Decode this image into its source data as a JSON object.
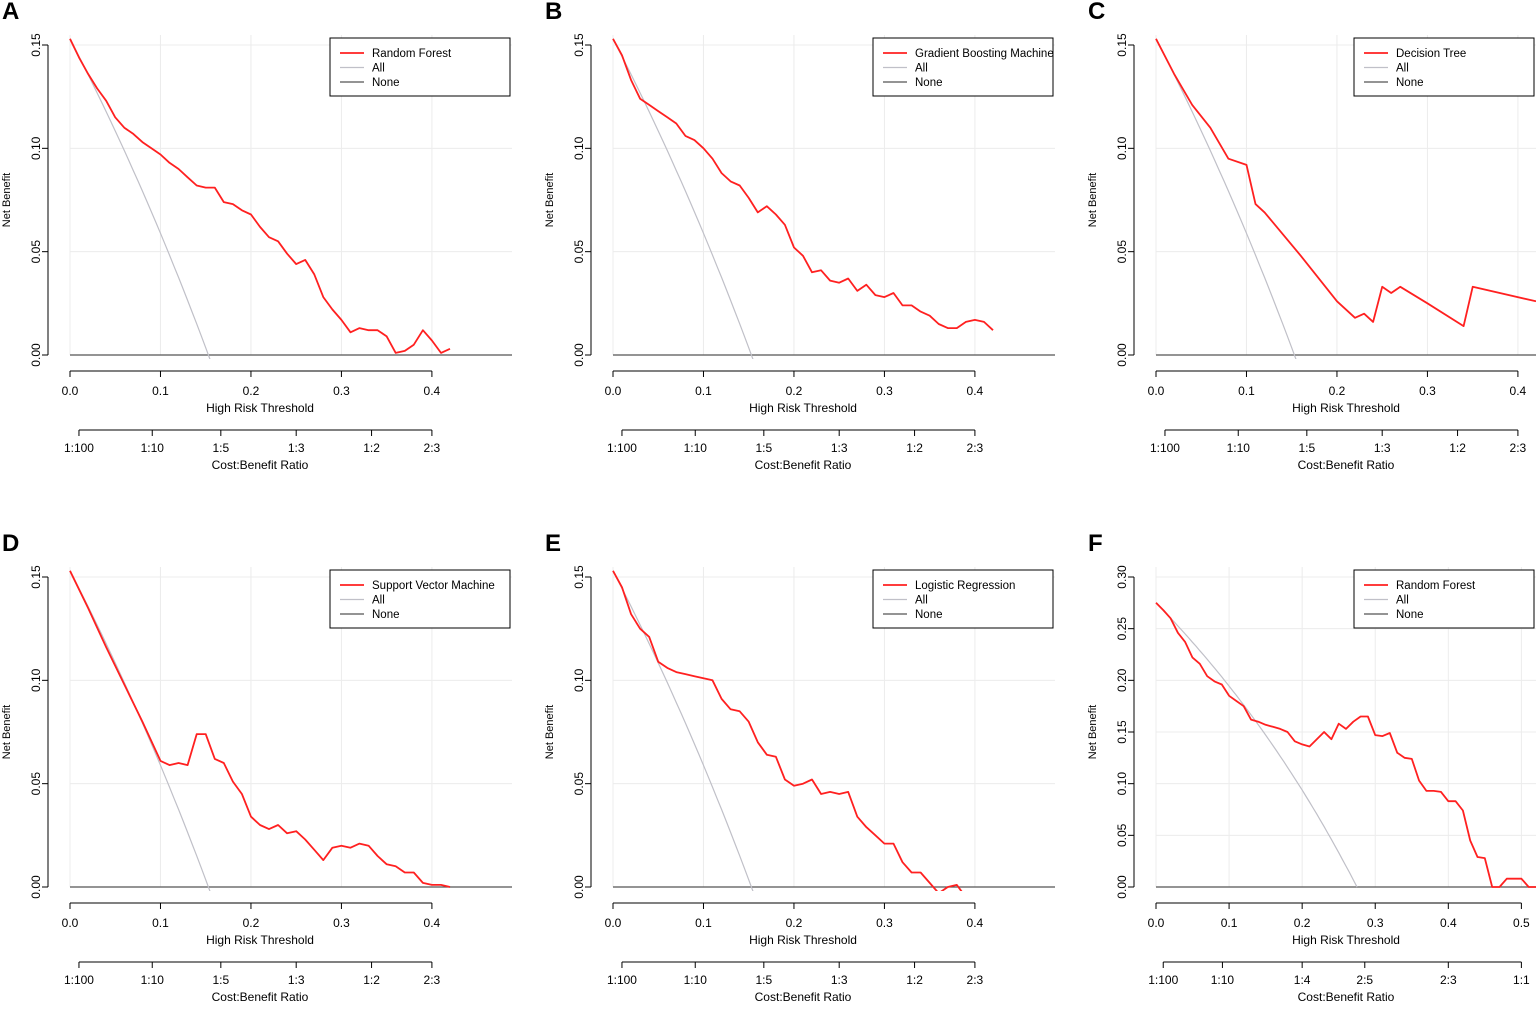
{
  "colors": {
    "model_line": "#ff2020",
    "all_line": "#c0c0c8",
    "none_line": "#555555",
    "grid": "#ececec",
    "axis": "#000000"
  },
  "chart_data": [
    {
      "panel": "A",
      "type": "line",
      "xlabel": "High Risk Threshold",
      "ylabel": "Net Benefit",
      "x2label": "Cost:Benefit Ratio",
      "xlim": [
        0,
        0.42
      ],
      "ylim": [
        0,
        0.15
      ],
      "xticks": [
        0.0,
        0.1,
        0.2,
        0.3,
        0.4
      ],
      "xtick_labels": [
        "0.0",
        "0.1",
        "0.2",
        "0.3",
        "0.4"
      ],
      "yticks": [
        0.0,
        0.05,
        0.1,
        0.15
      ],
      "ytick_labels": [
        "0.00",
        "0.05",
        "0.10",
        "0.15"
      ],
      "cbr_ticks": [
        0.0099,
        0.0909,
        0.1667,
        0.25,
        0.3333,
        0.4
      ],
      "cbr_labels": [
        "1:100",
        "1:10",
        "1:5",
        "1:3",
        "1:2",
        "2:3"
      ],
      "legend": {
        "position": "top-right",
        "entries": [
          "Random Forest",
          "All",
          "None"
        ]
      },
      "prevalence": 0.153,
      "series": [
        {
          "name": "Random Forest",
          "x": [
            0,
            0.01,
            0.02,
            0.03,
            0.04,
            0.05,
            0.06,
            0.07,
            0.08,
            0.09,
            0.1,
            0.11,
            0.12,
            0.13,
            0.14,
            0.15,
            0.16,
            0.17,
            0.18,
            0.19,
            0.2,
            0.21,
            0.22,
            0.23,
            0.24,
            0.25,
            0.26,
            0.27,
            0.28,
            0.29,
            0.3,
            0.31,
            0.32,
            0.33,
            0.34,
            0.35,
            0.36,
            0.37,
            0.38,
            0.39,
            0.4,
            0.41,
            0.42
          ],
          "y": [
            0.153,
            0.144,
            0.136,
            0.129,
            0.123,
            0.115,
            0.11,
            0.107,
            0.103,
            0.1,
            0.097,
            0.093,
            0.09,
            0.086,
            0.082,
            0.081,
            0.081,
            0.074,
            0.073,
            0.07,
            0.068,
            0.062,
            0.057,
            0.055,
            0.049,
            0.044,
            0.046,
            0.039,
            0.028,
            0.022,
            0.017,
            0.011,
            0.013,
            0.012,
            0.012,
            0.009,
            0.001,
            0.002,
            0.005,
            0.012,
            0.007,
            0.001,
            0.003
          ]
        }
      ]
    },
    {
      "panel": "B",
      "type": "line",
      "xlabel": "High Risk Threshold",
      "ylabel": "Net Benefit",
      "x2label": "Cost:Benefit Ratio",
      "xlim": [
        0,
        0.42
      ],
      "ylim": [
        0,
        0.15
      ],
      "xticks": [
        0.0,
        0.1,
        0.2,
        0.3,
        0.4
      ],
      "xtick_labels": [
        "0.0",
        "0.1",
        "0.2",
        "0.3",
        "0.4"
      ],
      "yticks": [
        0.0,
        0.05,
        0.1,
        0.15
      ],
      "ytick_labels": [
        "0.00",
        "0.05",
        "0.10",
        "0.15"
      ],
      "cbr_ticks": [
        0.0099,
        0.0909,
        0.1667,
        0.25,
        0.3333,
        0.4
      ],
      "cbr_labels": [
        "1:100",
        "1:10",
        "1:5",
        "1:3",
        "1:2",
        "2:3"
      ],
      "legend": {
        "position": "top-right",
        "entries": [
          "Gradient Boosting Machine",
          "All",
          "None"
        ]
      },
      "prevalence": 0.153,
      "series": [
        {
          "name": "Gradient Boosting Machine",
          "x": [
            0,
            0.01,
            0.02,
            0.03,
            0.04,
            0.05,
            0.06,
            0.07,
            0.08,
            0.09,
            0.1,
            0.11,
            0.12,
            0.13,
            0.14,
            0.15,
            0.16,
            0.17,
            0.18,
            0.19,
            0.2,
            0.21,
            0.22,
            0.23,
            0.24,
            0.25,
            0.26,
            0.27,
            0.28,
            0.29,
            0.3,
            0.31,
            0.32,
            0.33,
            0.34,
            0.35,
            0.36,
            0.37,
            0.38,
            0.39,
            0.4,
            0.41,
            0.42
          ],
          "y": [
            0.153,
            0.145,
            0.133,
            0.124,
            0.121,
            0.118,
            0.115,
            0.112,
            0.106,
            0.104,
            0.1,
            0.095,
            0.088,
            0.084,
            0.082,
            0.076,
            0.069,
            0.072,
            0.068,
            0.063,
            0.052,
            0.048,
            0.04,
            0.041,
            0.036,
            0.035,
            0.037,
            0.031,
            0.034,
            0.029,
            0.028,
            0.03,
            0.024,
            0.024,
            0.021,
            0.019,
            0.015,
            0.013,
            0.013,
            0.016,
            0.017,
            0.016,
            0.012
          ]
        }
      ]
    },
    {
      "panel": "C",
      "type": "line",
      "xlabel": "High Risk Threshold",
      "ylabel": "Net Benefit",
      "x2label": "Cost:Benefit Ratio",
      "xlim": [
        0,
        0.42
      ],
      "ylim": [
        0,
        0.15
      ],
      "xticks": [
        0.0,
        0.1,
        0.2,
        0.3,
        0.4
      ],
      "xtick_labels": [
        "0.0",
        "0.1",
        "0.2",
        "0.3",
        "0.4"
      ],
      "yticks": [
        0.0,
        0.05,
        0.1,
        0.15
      ],
      "ytick_labels": [
        "0.00",
        "0.05",
        "0.10",
        "0.15"
      ],
      "cbr_ticks": [
        0.0099,
        0.0909,
        0.1667,
        0.25,
        0.3333,
        0.4
      ],
      "cbr_labels": [
        "1:100",
        "1:10",
        "1:5",
        "1:3",
        "1:2",
        "2:3"
      ],
      "legend": {
        "position": "top-right",
        "entries": [
          "Decision Tree",
          "All",
          "None"
        ]
      },
      "prevalence": 0.153,
      "series": [
        {
          "name": "Decision Tree",
          "x": [
            0,
            0.02,
            0.04,
            0.06,
            0.08,
            0.1,
            0.11,
            0.12,
            0.16,
            0.2,
            0.22,
            0.23,
            0.24,
            0.25,
            0.26,
            0.27,
            0.3,
            0.34,
            0.35,
            0.42
          ],
          "y": [
            0.153,
            0.136,
            0.121,
            0.11,
            0.095,
            0.092,
            0.073,
            0.069,
            0.048,
            0.026,
            0.018,
            0.02,
            0.016,
            0.033,
            0.03,
            0.033,
            0.025,
            0.014,
            0.033,
            0.026
          ]
        }
      ]
    },
    {
      "panel": "D",
      "type": "line",
      "xlabel": "High Risk Threshold",
      "ylabel": "Net Benefit",
      "x2label": "Cost:Benefit Ratio",
      "xlim": [
        0,
        0.42
      ],
      "ylim": [
        0,
        0.15
      ],
      "xticks": [
        0.0,
        0.1,
        0.2,
        0.3,
        0.4
      ],
      "xtick_labels": [
        "0.0",
        "0.1",
        "0.2",
        "0.3",
        "0.4"
      ],
      "yticks": [
        0.0,
        0.05,
        0.1,
        0.15
      ],
      "ytick_labels": [
        "0.00",
        "0.05",
        "0.10",
        "0.15"
      ],
      "cbr_ticks": [
        0.0099,
        0.0909,
        0.1667,
        0.25,
        0.3333,
        0.4
      ],
      "cbr_labels": [
        "1:100",
        "1:10",
        "1:5",
        "1:3",
        "1:2",
        "2:3"
      ],
      "legend": {
        "position": "top-right",
        "entries": [
          "Support Vector Machine",
          "All",
          "None"
        ]
      },
      "prevalence": 0.153,
      "series": [
        {
          "name": "Support Vector Machine",
          "x": [
            0,
            0.02,
            0.04,
            0.06,
            0.08,
            0.1,
            0.11,
            0.12,
            0.13,
            0.14,
            0.15,
            0.16,
            0.17,
            0.18,
            0.19,
            0.2,
            0.21,
            0.22,
            0.23,
            0.24,
            0.25,
            0.26,
            0.27,
            0.28,
            0.29,
            0.3,
            0.31,
            0.32,
            0.33,
            0.34,
            0.35,
            0.36,
            0.37,
            0.38,
            0.39,
            0.4,
            0.41,
            0.42
          ],
          "y": [
            0.153,
            0.135,
            0.116,
            0.098,
            0.08,
            0.061,
            0.059,
            0.06,
            0.059,
            0.074,
            0.074,
            0.062,
            0.06,
            0.051,
            0.045,
            0.034,
            0.03,
            0.028,
            0.03,
            0.026,
            0.027,
            0.023,
            0.018,
            0.013,
            0.019,
            0.02,
            0.019,
            0.021,
            0.02,
            0.015,
            0.011,
            0.01,
            0.007,
            0.007,
            0.002,
            0.001,
            0.001,
            0.0
          ]
        }
      ]
    },
    {
      "panel": "E",
      "type": "line",
      "xlabel": "High Risk Threshold",
      "ylabel": "Net Benefit",
      "x2label": "Cost:Benefit Ratio",
      "xlim": [
        0,
        0.42
      ],
      "ylim": [
        0,
        0.15
      ],
      "xticks": [
        0.0,
        0.1,
        0.2,
        0.3,
        0.4
      ],
      "xtick_labels": [
        "0.0",
        "0.1",
        "0.2",
        "0.3",
        "0.4"
      ],
      "yticks": [
        0.0,
        0.05,
        0.1,
        0.15
      ],
      "ytick_labels": [
        "0.00",
        "0.05",
        "0.10",
        "0.15"
      ],
      "cbr_ticks": [
        0.0099,
        0.0909,
        0.1667,
        0.25,
        0.3333,
        0.4
      ],
      "cbr_labels": [
        "1:100",
        "1:10",
        "1:5",
        "1:3",
        "1:2",
        "2:3"
      ],
      "legend": {
        "position": "top-right",
        "entries": [
          "Logistic Regression",
          "All",
          "None"
        ]
      },
      "prevalence": 0.153,
      "series": [
        {
          "name": "Logistic Regression",
          "x": [
            0,
            0.01,
            0.02,
            0.03,
            0.04,
            0.05,
            0.06,
            0.07,
            0.08,
            0.09,
            0.1,
            0.11,
            0.12,
            0.13,
            0.14,
            0.15,
            0.16,
            0.17,
            0.18,
            0.19,
            0.2,
            0.21,
            0.22,
            0.23,
            0.24,
            0.25,
            0.26,
            0.27,
            0.28,
            0.29,
            0.3,
            0.31,
            0.32,
            0.33,
            0.34,
            0.35,
            0.36,
            0.37,
            0.38,
            0.39
          ],
          "y": [
            0.153,
            0.145,
            0.132,
            0.125,
            0.121,
            0.109,
            0.106,
            0.104,
            0.103,
            0.102,
            0.101,
            0.1,
            0.091,
            0.086,
            0.085,
            0.08,
            0.07,
            0.064,
            0.063,
            0.052,
            0.049,
            0.05,
            0.052,
            0.045,
            0.046,
            0.045,
            0.046,
            0.034,
            0.029,
            0.025,
            0.021,
            0.021,
            0.012,
            0.007,
            0.007,
            0.002,
            -0.003,
            0.0,
            0.001,
            -0.005
          ]
        }
      ]
    },
    {
      "panel": "F",
      "type": "line",
      "xlabel": "High Risk Threshold",
      "ylabel": "Net Benefit",
      "x2label": "Cost:Benefit Ratio",
      "xlim": [
        0,
        0.52
      ],
      "ylim": [
        0,
        0.3
      ],
      "xticks": [
        0.0,
        0.1,
        0.2,
        0.3,
        0.4,
        0.5
      ],
      "xtick_labels": [
        "0.0",
        "0.1",
        "0.2",
        "0.3",
        "0.4",
        "0.5"
      ],
      "yticks": [
        0.0,
        0.05,
        0.1,
        0.15,
        0.2,
        0.25,
        0.3
      ],
      "ytick_labels": [
        "0.00",
        "0.05",
        "0.10",
        "0.15",
        "0.20",
        "0.25",
        "0.30"
      ],
      "cbr_ticks": [
        0.0099,
        0.0909,
        0.2,
        0.2857,
        0.4,
        0.5
      ],
      "cbr_labels": [
        "1:100",
        "1:10",
        "1:4",
        "2:5",
        "2:3",
        "1:1"
      ],
      "legend": {
        "position": "top-right",
        "entries": [
          "Random Forest",
          "All",
          "None"
        ]
      },
      "prevalence": 0.275,
      "series": [
        {
          "name": "Random Forest",
          "x": [
            0,
            0.01,
            0.02,
            0.03,
            0.04,
            0.05,
            0.06,
            0.07,
            0.08,
            0.09,
            0.1,
            0.11,
            0.12,
            0.13,
            0.14,
            0.15,
            0.16,
            0.17,
            0.18,
            0.19,
            0.2,
            0.21,
            0.22,
            0.23,
            0.24,
            0.25,
            0.26,
            0.27,
            0.28,
            0.29,
            0.3,
            0.31,
            0.32,
            0.33,
            0.34,
            0.35,
            0.36,
            0.37,
            0.38,
            0.39,
            0.4,
            0.41,
            0.42,
            0.43,
            0.44,
            0.45,
            0.46,
            0.47,
            0.48,
            0.49,
            0.5,
            0.51,
            0.52
          ],
          "y": [
            0.275,
            0.268,
            0.26,
            0.246,
            0.237,
            0.222,
            0.216,
            0.204,
            0.199,
            0.196,
            0.185,
            0.18,
            0.175,
            0.162,
            0.16,
            0.157,
            0.155,
            0.153,
            0.15,
            0.141,
            0.138,
            0.136,
            0.143,
            0.15,
            0.143,
            0.158,
            0.153,
            0.16,
            0.165,
            0.165,
            0.147,
            0.146,
            0.149,
            0.13,
            0.125,
            0.124,
            0.103,
            0.093,
            0.093,
            0.092,
            0.083,
            0.083,
            0.074,
            0.045,
            0.029,
            0.028,
            0.0,
            0.0,
            0.008,
            0.008,
            0.008,
            0.0,
            0.0
          ]
        }
      ]
    }
  ]
}
